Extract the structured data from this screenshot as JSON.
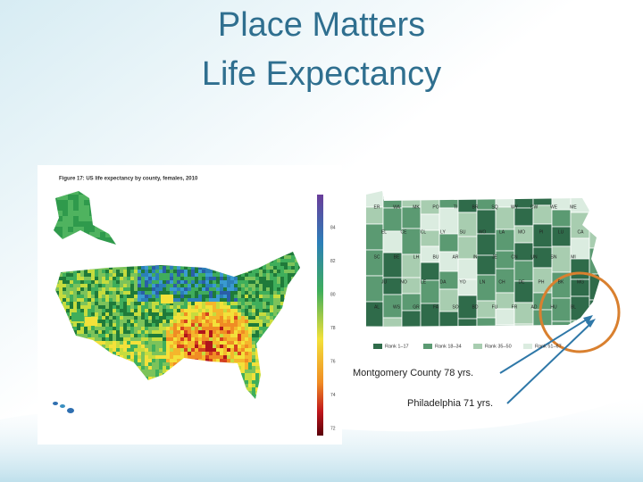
{
  "slide": {
    "title_lines": [
      "Place Matters",
      "Life Expectancy"
    ],
    "us_map": {
      "caption": "Figure 17: US life expectancy by county, females, 2010",
      "scale_labels": [
        "84",
        "82",
        "80",
        "78",
        "76",
        "74",
        "72"
      ]
    },
    "pa_map": {
      "county_labels": [
        "ER",
        "WA",
        "MK",
        "PO",
        "TI",
        "BR",
        "SQ",
        "WY",
        "CW",
        "WE",
        "ME",
        "EL",
        "CE",
        "CL",
        "LY",
        "SU",
        "WO",
        "LA",
        "MO",
        "PI",
        "LU",
        "CA",
        "SC",
        "BE",
        "LH",
        "BU",
        "AR",
        "IN",
        "JE",
        "CN",
        "UN",
        "SN",
        "MI",
        "JU",
        "NO",
        "LE",
        "DA",
        "YO",
        "LN",
        "CH",
        "DE",
        "PH",
        "BK",
        "MG",
        "AL",
        "WS",
        "GR",
        "FA",
        "SO",
        "BD",
        "FU",
        "FR",
        "AD",
        "HU",
        "BL"
      ],
      "legend": [
        "Rank 1–17",
        "Rank 18–34",
        "Rank 35–50",
        "Rank 51–67"
      ]
    },
    "annotations": [
      "Montgomery County 78 yrs.",
      "Philadelphia 71 yrs."
    ]
  }
}
